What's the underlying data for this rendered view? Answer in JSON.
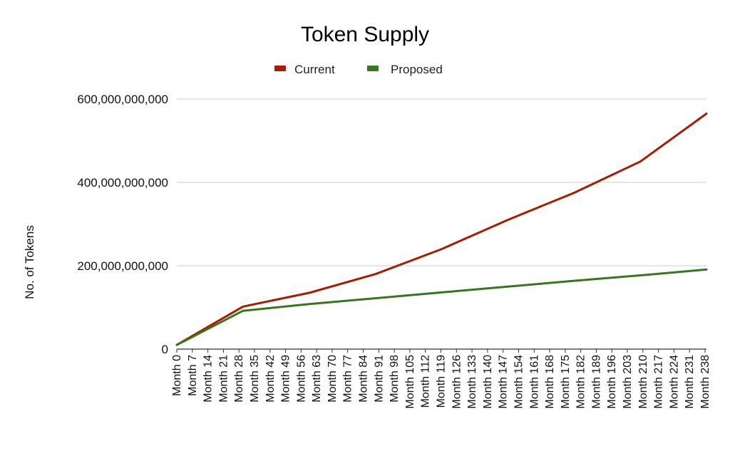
{
  "chart_data": {
    "type": "line",
    "title": "Token Supply",
    "xlabel": "",
    "ylabel": "No. of Tokens",
    "ylim": [
      0,
      600000000000
    ],
    "yticks": [
      0,
      200000000000,
      400000000000,
      600000000000
    ],
    "ytick_labels": [
      "0",
      "200,000,000,000",
      "400,000,000,000",
      "600,000,000,000"
    ],
    "grid": true,
    "legend_position": "top-center",
    "x_tick_labels": [
      "Month 0",
      "Month 7",
      "Month 14",
      "Month 21",
      "Month 28",
      "Month 35",
      "Month 42",
      "Month 49",
      "Month 56",
      "Month 63",
      "Month 70",
      "Month 77",
      "Month 84",
      "Month 91",
      "Month 98",
      "Month 105",
      "Month 112",
      "Month 119",
      "Month 126",
      "Month 133",
      "Month 140",
      "Month 147",
      "Month 154",
      "Month 161",
      "Month 168",
      "Month 175",
      "Month 182",
      "Month 189",
      "Month 196",
      "Month 203",
      "Month 210",
      "Month 217",
      "Month 224",
      "Month 231",
      "Month 238"
    ],
    "x_months": [
      0,
      30,
      60,
      90,
      120,
      150,
      180,
      210,
      240
    ],
    "series": [
      {
        "name": "Current",
        "color": "#a61c00",
        "x": [
          0,
          30,
          60,
          90,
          120,
          150,
          180,
          210,
          240
        ],
        "values": [
          10000000000,
          102000000000,
          135000000000,
          180000000000,
          240000000000,
          310000000000,
          375000000000,
          450000000000,
          565000000000
        ]
      },
      {
        "name": "Proposed",
        "color": "#38761d",
        "x": [
          0,
          30,
          60,
          90,
          120,
          150,
          180,
          210,
          240
        ],
        "values": [
          10000000000,
          92000000000,
          108000000000,
          122000000000,
          136000000000,
          150000000000,
          164000000000,
          177000000000,
          191000000000
        ]
      }
    ]
  }
}
